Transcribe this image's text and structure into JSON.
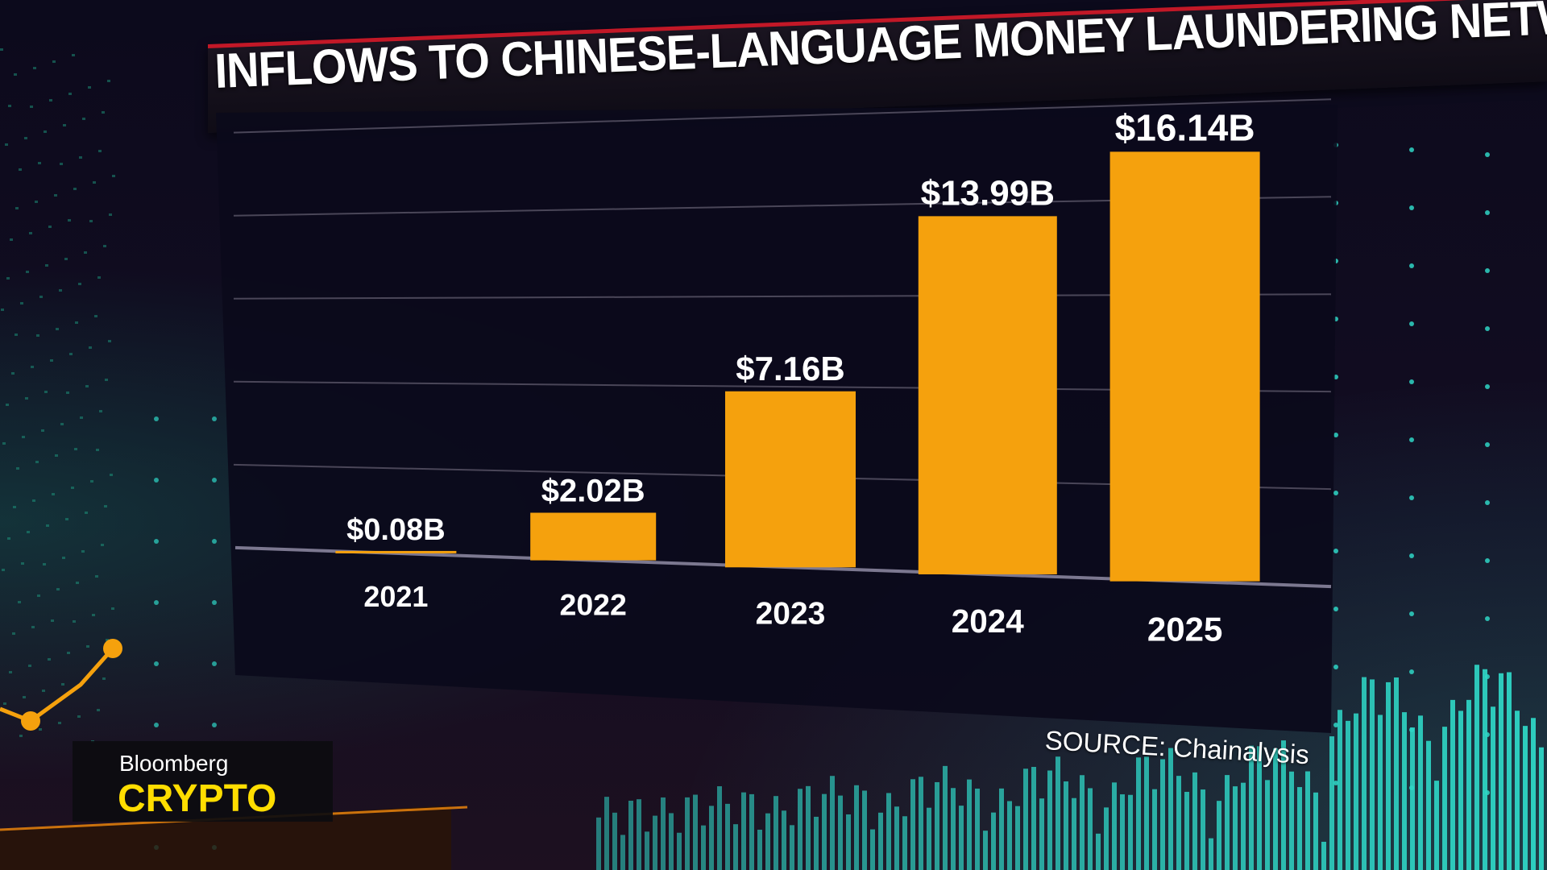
{
  "chart_data": {
    "type": "bar",
    "title": "INFLOWS TO CHINESE-LANGUAGE MONEY LAUNDERING NETWORKS",
    "categories": [
      "2021",
      "2022",
      "2023",
      "2024",
      "2025"
    ],
    "values": [
      0.08,
      2.02,
      7.16,
      13.99,
      16.14
    ],
    "data_labels": [
      "$0.08B",
      "$2.02B",
      "$7.16B",
      "$13.99B",
      "$16.14B"
    ],
    "unit": "billion USD",
    "ylim": [
      0,
      20
    ],
    "grid": true,
    "bar_color": "#f5a10d"
  },
  "source": "SOURCE: Chainalysis",
  "brand": {
    "name": "Bloomberg",
    "show": "CRYPTO"
  },
  "colors": {
    "banner_accent": "#c21827",
    "brand_yellow": "#ffdd00",
    "wave_teal": "#2fd6c6"
  }
}
